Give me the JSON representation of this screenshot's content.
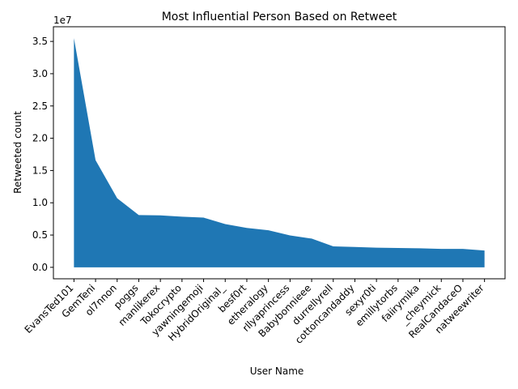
{
  "chart_data": {
    "type": "area",
    "title": "Most Influential Person Based on Retweet",
    "xlabel": "User Name",
    "ylabel": "Retweeted count",
    "y_offset_text": "1e7",
    "categories": [
      "EvansTed101",
      "GemTeni",
      "ol7nnon",
      "poggs",
      "manlikerex",
      "Tokocrypto",
      "yawningemoji",
      "HybridOriginal_",
      "besf0rt",
      "etheralogy",
      "rllyaprincess",
      "Babybonnieee",
      "durrellyrell",
      "cottoncandaddy",
      "sexyr0ti",
      "emillytorbs",
      "faiirymika",
      "_cheymick",
      "RealCandaceO",
      "natweewriter"
    ],
    "values": [
      35500000,
      16600000,
      10700000,
      8100000,
      8050000,
      7850000,
      7700000,
      6700000,
      6100000,
      5750000,
      4950000,
      4450000,
      3250000,
      3150000,
      3050000,
      3000000,
      2950000,
      2850000,
      2850000,
      2600000
    ],
    "ylim": [
      -1775000,
      37275000
    ],
    "yticks": [
      0,
      5000000,
      10000000,
      15000000,
      20000000,
      25000000,
      30000000,
      35000000
    ],
    "ytick_labels": [
      "0.0",
      "0.5",
      "1.0",
      "1.5",
      "2.0",
      "2.5",
      "3.0",
      "3.5"
    ],
    "grid": false,
    "legend": "none",
    "fill_color": "#1f77b4"
  }
}
